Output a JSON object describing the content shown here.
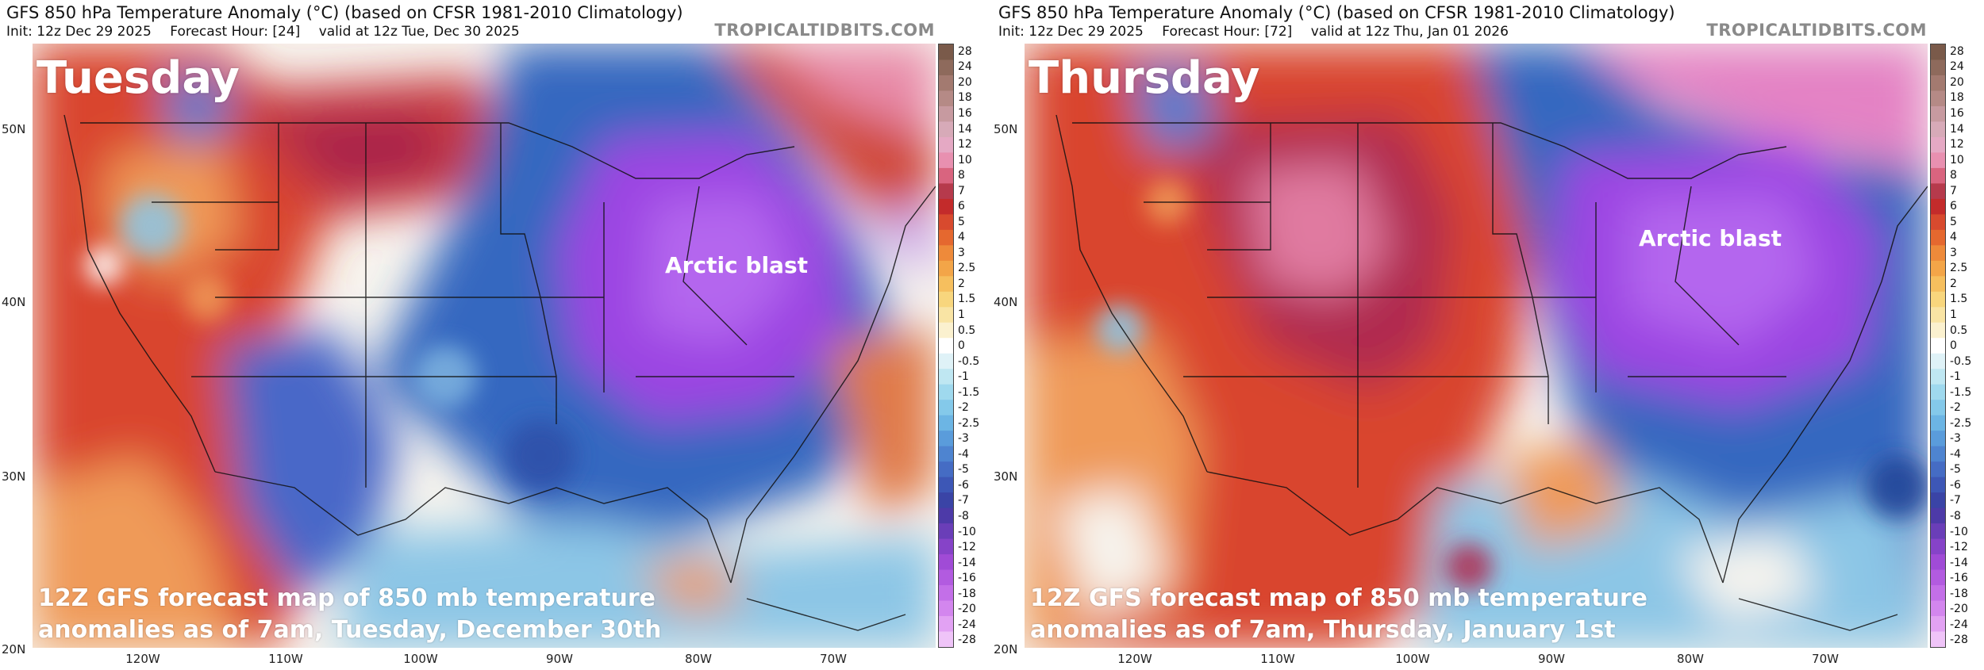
{
  "panels": [
    {
      "title": "GFS 850 hPa Temperature Anomaly (°C) (based on CFSR 1981-2010 Climatology)",
      "init": "Init: 12z Dec 29 2025",
      "forecast_hour": "Forecast Hour: [24]",
      "valid": "valid at 12z Tue, Dec 30 2025",
      "brand": "TROPICALTIDBITS.COM",
      "day_label": "Tuesday",
      "annotation": "Arctic blast",
      "caption_line1": "12Z GFS forecast map of 850 mb temperature",
      "caption_line2": "anomalies as of 7am, Tuesday, December 30th"
    },
    {
      "title": "GFS 850 hPa Temperature Anomaly (°C) (based on CFSR 1981-2010 Climatology)",
      "init": "Init: 12z Dec 29 2025",
      "forecast_hour": "Forecast Hour: [72]",
      "valid": "valid at 12z Thu, Jan 01 2026",
      "brand": "TROPICALTIDBITS.COM",
      "day_label": "Thursday",
      "annotation": "Arctic blast",
      "caption_line1": "12Z GFS forecast map of 850 mb temperature",
      "caption_line2": "anomalies as of 7am, Thursday, January 1st"
    }
  ],
  "lat_labels": [
    "50N",
    "40N",
    "30N",
    "20N"
  ],
  "lon_labels": [
    "120W",
    "110W",
    "100W",
    "90W",
    "80W",
    "70W"
  ],
  "colorbar_labels": [
    "28",
    "24",
    "20",
    "18",
    "16",
    "14",
    "12",
    "10",
    "8",
    "7",
    "6",
    "5",
    "4",
    "3",
    "2.5",
    "2",
    "1.5",
    "1",
    "0.5",
    "0",
    "-0.5",
    "-1",
    "-1.5",
    "-2",
    "-2.5",
    "-3",
    "-4",
    "-5",
    "-6",
    "-7",
    "-8",
    "-10",
    "-12",
    "-14",
    "-16",
    "-18",
    "-20",
    "-24",
    "-28"
  ],
  "colors": {
    "warm": "#cf3a2f",
    "hot": "#a8214a",
    "cold": "#2f5fb5",
    "arctic": "#9a43e0",
    "neutral": "#f4f1ea"
  }
}
